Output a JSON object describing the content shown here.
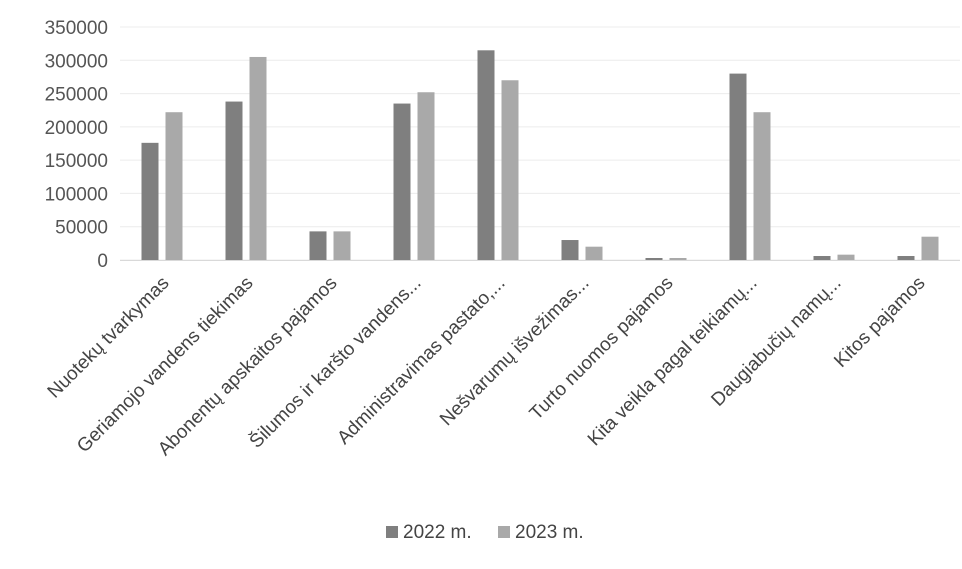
{
  "chart_data": {
    "type": "bar",
    "categories": [
      "Nuotekų tvarkymas",
      "Geriamojo vandens tiekimas",
      "Abonentų apskaitos pajamos",
      "Šilumos ir karšto vandens...",
      "Administravimas pastato,...",
      "Nešvarumų išvežimas...",
      "Turto nuomos pajamos",
      "Kita veikla pagal teikiamų...",
      "Daugiabučių namų...",
      "Kitos pajamos"
    ],
    "series": [
      {
        "name": "2022 m.",
        "values": [
          176000,
          238000,
          43000,
          235000,
          315000,
          30000,
          3000,
          280000,
          6000,
          6000
        ]
      },
      {
        "name": "2023 m.",
        "values": [
          222000,
          305000,
          43000,
          252000,
          270000,
          20000,
          3000,
          222000,
          8000,
          35000
        ]
      }
    ],
    "yticks": [
      "0",
      "50000",
      "100000",
      "150000",
      "200000",
      "250000",
      "300000",
      "350000"
    ],
    "ylim": [
      0,
      350000
    ],
    "grid": true,
    "legend_position": "bottom",
    "colors": {
      "series_2022": "#7f7f7f",
      "series_2023": "#a9a9a9",
      "grid": "#ececec"
    }
  }
}
